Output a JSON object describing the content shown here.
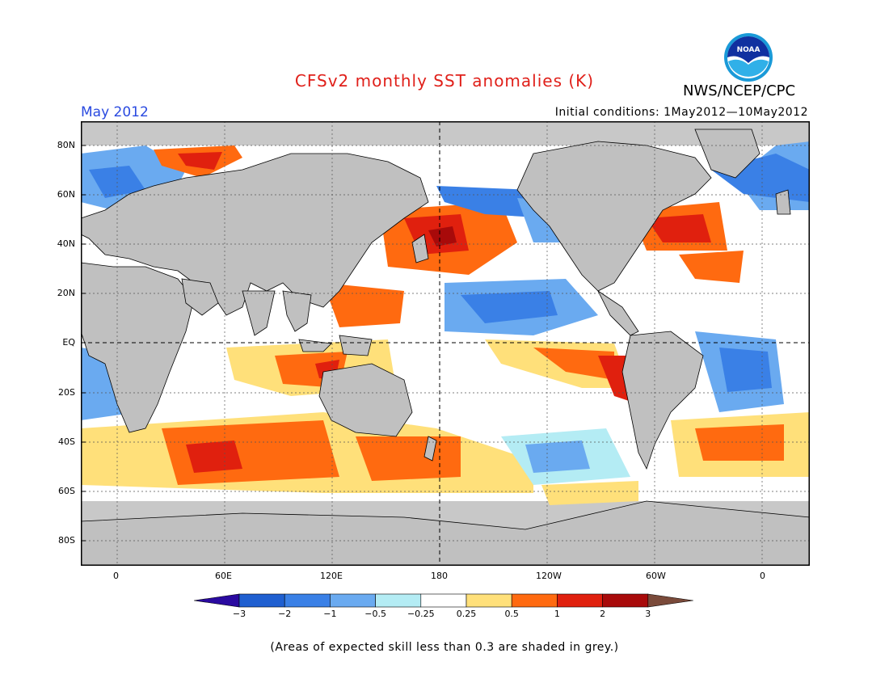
{
  "title": "CFSv2 monthly SST anomalies (K)",
  "month_label": "May 2012",
  "initial_conditions": "Initial conditions: 1May2012—10May2012",
  "agency": "NWS/NCEP/CPC",
  "logo_text": "NOAA",
  "x_ticks": [
    "0",
    "60E",
    "120E",
    "180",
    "120W",
    "60W",
    "0"
  ],
  "y_ticks": [
    "80N",
    "60N",
    "40N",
    "20N",
    "EQ",
    "20S",
    "40S",
    "60S",
    "80S"
  ],
  "colorbar": {
    "labels": [
      "−3",
      "−2",
      "−1",
      "−0.5",
      "−0.25",
      "0.25",
      "0.5",
      "1",
      "2",
      "3"
    ],
    "colors": [
      "#2a0aa0",
      "#1f5fd0",
      "#3a80e6",
      "#6aaaf0",
      "#b4ecf4",
      "#ffffff",
      "#ffe07a",
      "#ff6a10",
      "#e0200e",
      "#a80a0a",
      "#7a4a3a"
    ]
  },
  "note": "(Areas of expected skill less than 0.3 are shaded in grey.)",
  "colors": {
    "land": "#c0c0c0",
    "skill_grey": "#c8c8c8"
  }
}
